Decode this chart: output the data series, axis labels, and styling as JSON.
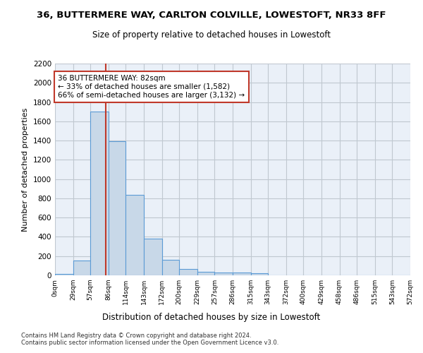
{
  "title": "36, BUTTERMERE WAY, CARLTON COLVILLE, LOWESTOFT, NR33 8FF",
  "subtitle": "Size of property relative to detached houses in Lowestoft",
  "xlabel": "Distribution of detached houses by size in Lowestoft",
  "ylabel": "Number of detached properties",
  "bar_values": [
    15,
    155,
    1700,
    1390,
    835,
    385,
    165,
    65,
    40,
    30,
    30,
    20,
    0,
    0,
    0,
    0,
    0,
    0,
    0,
    0
  ],
  "bin_edges": [
    0,
    29,
    57,
    86,
    114,
    143,
    172,
    200,
    229,
    257,
    286,
    315,
    343,
    372,
    400,
    429,
    458,
    486,
    515,
    543,
    572
  ],
  "tick_labels": [
    "0sqm",
    "29sqm",
    "57sqm",
    "86sqm",
    "114sqm",
    "143sqm",
    "172sqm",
    "200sqm",
    "229sqm",
    "257sqm",
    "286sqm",
    "315sqm",
    "343sqm",
    "372sqm",
    "400sqm",
    "429sqm",
    "458sqm",
    "486sqm",
    "515sqm",
    "543sqm",
    "572sqm"
  ],
  "bar_color": "#c8d8e8",
  "bar_edgecolor": "#5b9bd5",
  "property_size": 82,
  "vline_color": "#c0392b",
  "annotation_line1": "36 BUTTERMERE WAY: 82sqm",
  "annotation_line2": "← 33% of detached houses are smaller (1,582)",
  "annotation_line3": "66% of semi-detached houses are larger (3,132) →",
  "annotation_box_color": "#c0392b",
  "ylim": [
    0,
    2200
  ],
  "yticks": [
    0,
    200,
    400,
    600,
    800,
    1000,
    1200,
    1400,
    1600,
    1800,
    2000,
    2200
  ],
  "grid_color": "#c0c8d0",
  "bg_color": "#eaf0f8",
  "footer_line1": "Contains HM Land Registry data © Crown copyright and database right 2024.",
  "footer_line2": "Contains public sector information licensed under the Open Government Licence v3.0."
}
